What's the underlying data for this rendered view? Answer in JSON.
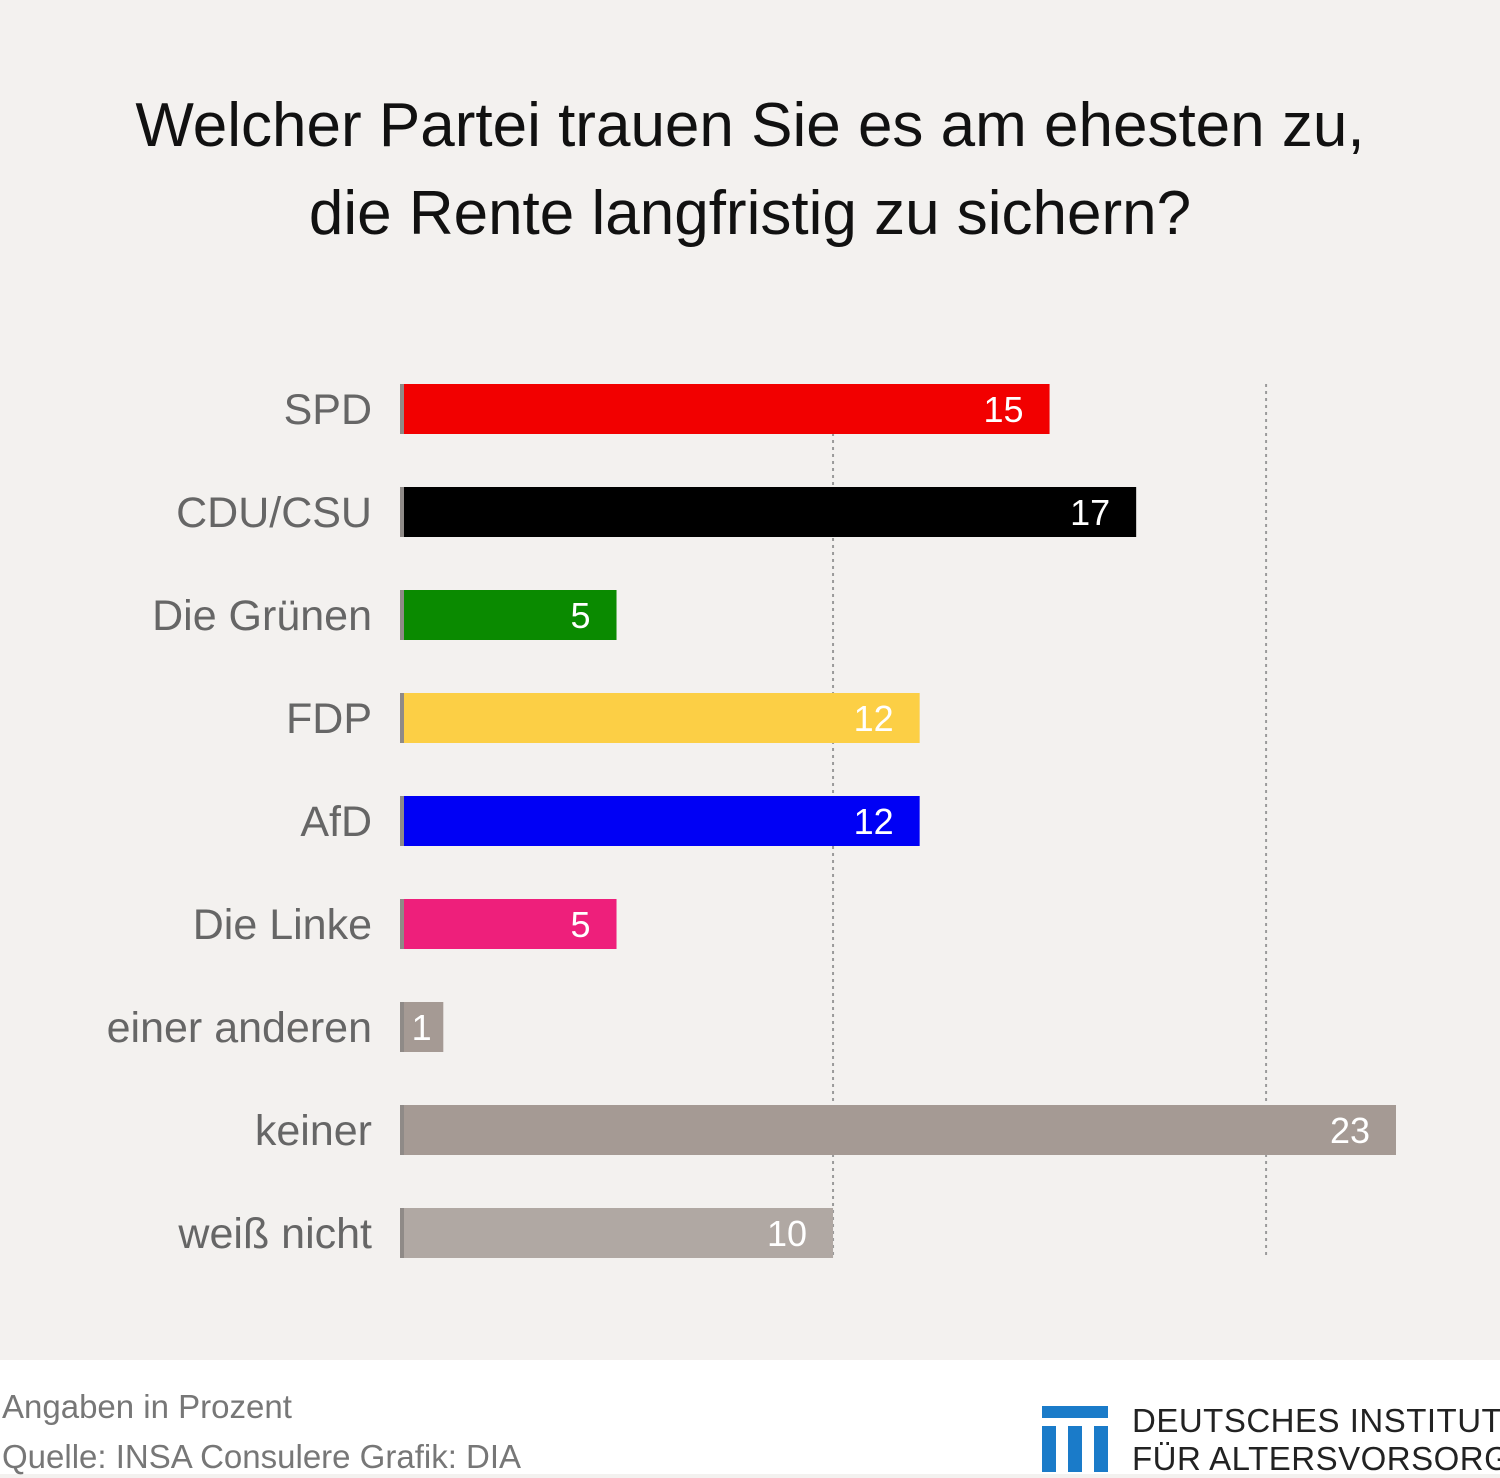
{
  "title": {
    "line1": "Welcher Partei trauen Sie es am ehesten zu,",
    "line2": "die Rente langfristig zu sichern?"
  },
  "chart_data": {
    "type": "bar",
    "orientation": "horizontal",
    "categories": [
      "SPD",
      "CDU/CSU",
      "Die Grünen",
      "FDP",
      "AfD",
      "Die Linke",
      "einer anderen",
      "keiner",
      "weiß nicht"
    ],
    "values": [
      15,
      17,
      5,
      12,
      12,
      5,
      1,
      23,
      10
    ],
    "data_labels": [
      "15",
      "17",
      "5",
      "12",
      "12",
      "5",
      "1",
      "23",
      "10"
    ],
    "colors": [
      "#f20000",
      "#000000",
      "#0a8a00",
      "#fccf45",
      "#0000f5",
      "#ee1f7b",
      "#a59a94",
      "#a59a94",
      "#b0a8a3"
    ],
    "label_colors": [
      "#ffffff",
      "#ffffff",
      "#ffffff",
      "#ffffff",
      "#ffffff",
      "#ffffff",
      "#ffffff",
      "#ffffff",
      "#ffffff"
    ],
    "xlim": [
      0,
      23
    ],
    "reference_lines": [
      10,
      20
    ],
    "grid": "dotted vertical",
    "unit": "Prozent"
  },
  "footer": {
    "note1": "Angaben in Prozent",
    "note2": "Quelle: INSA Consulere  Grafik: DIA",
    "logo_line1": "DEUTSCHES INSTITUT",
    "logo_line2": "FÜR ALTERSVORSORGE",
    "logo_color": "#1a7bc9"
  }
}
